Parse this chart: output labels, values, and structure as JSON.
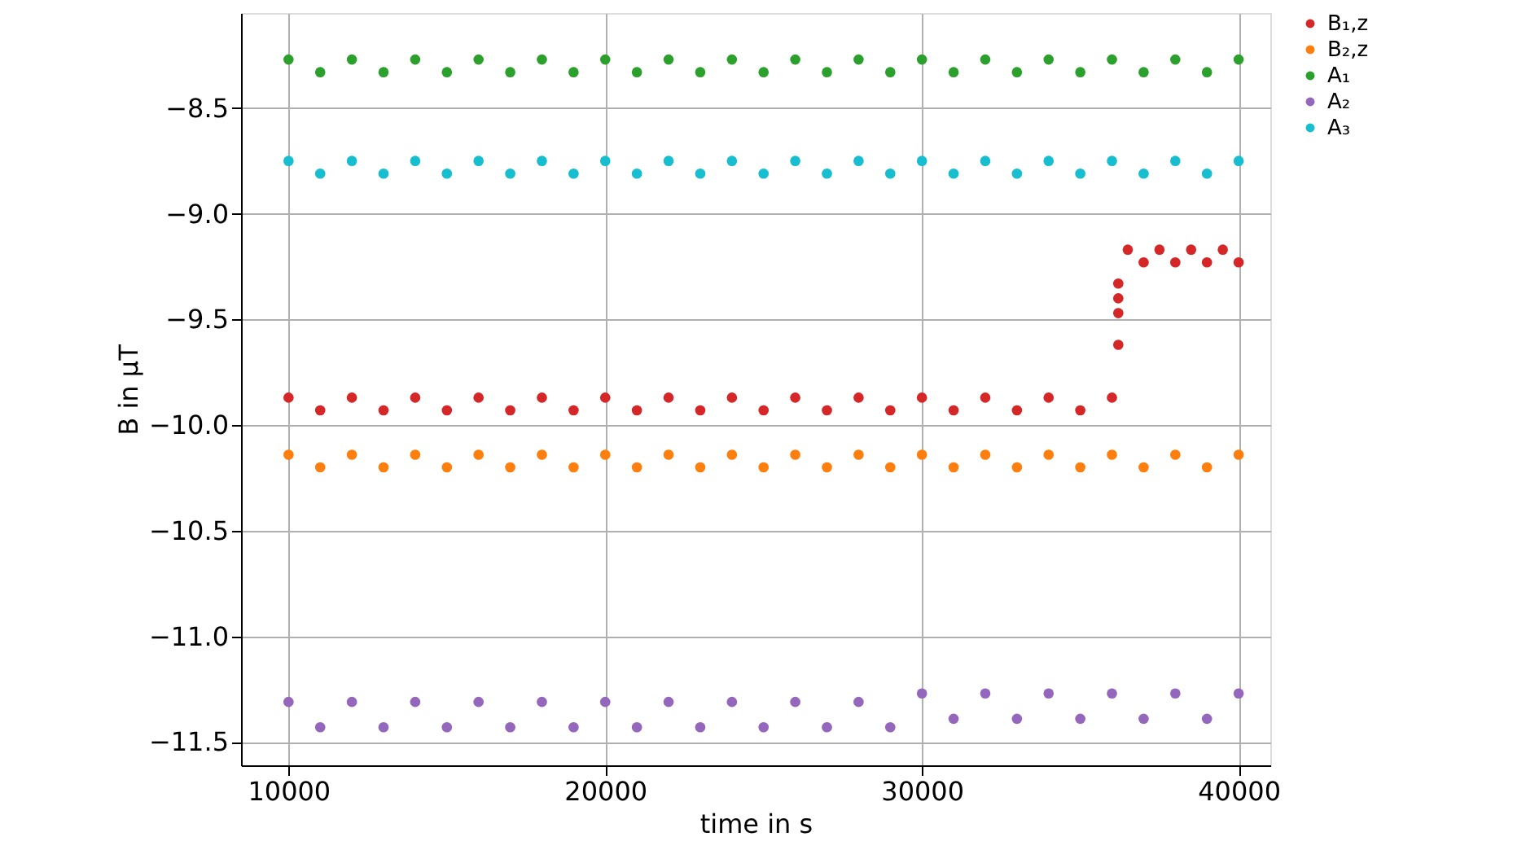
{
  "chart_data": {
    "type": "scatter",
    "xlabel": "time in s",
    "ylabel": "B in μT",
    "x": [
      10000,
      11000,
      12000,
      13000,
      14000,
      15000,
      16000,
      17000,
      18000,
      19000,
      20000,
      21000,
      22000,
      23000,
      24000,
      25000,
      26000,
      27000,
      28000,
      29000,
      30000,
      31000,
      32000,
      33000,
      34000,
      35000,
      36000,
      37000,
      38000,
      39000,
      40000
    ],
    "series": [
      {
        "name": "B₁,z",
        "color": "#d62728",
        "x": [
          10000,
          11000,
          12000,
          13000,
          14000,
          15000,
          16000,
          17000,
          18000,
          19000,
          20000,
          21000,
          22000,
          23000,
          24000,
          25000,
          26000,
          27000,
          28000,
          29000,
          30000,
          31000,
          32000,
          33000,
          34000,
          35000,
          36000,
          36200,
          36200,
          36200,
          36200,
          36500,
          37000,
          37500,
          38000,
          38500,
          39000,
          39500,
          40000
        ],
        "values": [
          -9.87,
          -9.93,
          -9.87,
          -9.93,
          -9.87,
          -9.93,
          -9.87,
          -9.93,
          -9.87,
          -9.93,
          -9.87,
          -9.93,
          -9.87,
          -9.93,
          -9.87,
          -9.93,
          -9.87,
          -9.93,
          -9.87,
          -9.93,
          -9.87,
          -9.93,
          -9.87,
          -9.93,
          -9.87,
          -9.93,
          -9.87,
          -9.62,
          -9.47,
          -9.4,
          -9.33,
          -9.17,
          -9.23,
          -9.17,
          -9.23,
          -9.17,
          -9.23,
          -9.17,
          -9.23
        ]
      },
      {
        "name": "B₂,z",
        "color": "#ff7f0e",
        "values": [
          -10.14,
          -10.2,
          -10.14,
          -10.2,
          -10.14,
          -10.2,
          -10.14,
          -10.2,
          -10.14,
          -10.2,
          -10.14,
          -10.2,
          -10.14,
          -10.2,
          -10.14,
          -10.2,
          -10.14,
          -10.2,
          -10.14,
          -10.2,
          -10.14,
          -10.2,
          -10.14,
          -10.2,
          -10.14,
          -10.2,
          -10.14,
          -10.2,
          -10.14,
          -10.2,
          -10.14
        ]
      },
      {
        "name": "A₁",
        "color": "#2ca02c",
        "values": [
          -8.27,
          -8.33,
          -8.27,
          -8.33,
          -8.27,
          -8.33,
          -8.27,
          -8.33,
          -8.27,
          -8.33,
          -8.27,
          -8.33,
          -8.27,
          -8.33,
          -8.27,
          -8.33,
          -8.27,
          -8.33,
          -8.27,
          -8.33,
          -8.27,
          -8.33,
          -8.27,
          -8.33,
          -8.27,
          -8.33,
          -8.27,
          -8.33,
          -8.27,
          -8.33,
          -8.27
        ]
      },
      {
        "name": "A₂",
        "color": "#9467bd",
        "values": [
          -11.31,
          -11.43,
          -11.31,
          -11.43,
          -11.31,
          -11.43,
          -11.31,
          -11.43,
          -11.31,
          -11.43,
          -11.31,
          -11.43,
          -11.31,
          -11.43,
          -11.31,
          -11.43,
          -11.31,
          -11.43,
          -11.31,
          -11.43,
          -11.27,
          -11.39,
          -11.27,
          -11.39,
          -11.27,
          -11.39,
          -11.27,
          -11.39,
          -11.27,
          -11.39,
          -11.27
        ]
      },
      {
        "name": "A₃",
        "color": "#17becf",
        "values": [
          -8.75,
          -8.81,
          -8.75,
          -8.81,
          -8.75,
          -8.81,
          -8.75,
          -8.81,
          -8.75,
          -8.81,
          -8.75,
          -8.81,
          -8.75,
          -8.81,
          -8.75,
          -8.81,
          -8.75,
          -8.81,
          -8.75,
          -8.81,
          -8.75,
          -8.81,
          -8.75,
          -8.81,
          -8.75,
          -8.81,
          -8.75,
          -8.81,
          -8.75,
          -8.81,
          -8.75
        ]
      }
    ],
    "xlim": [
      8500,
      41000
    ],
    "xticks": [
      10000,
      20000,
      30000,
      40000
    ],
    "ylim": [
      -11.61,
      -8.05
    ],
    "yticks": [
      {
        "value": -11.5,
        "label": "−11.5"
      },
      {
        "value": -11.0,
        "label": "−11.0"
      },
      {
        "value": -10.5,
        "label": "−10.5"
      },
      {
        "value": -10.0,
        "label": "−10.0"
      },
      {
        "value": -9.5,
        "label": "−9.5"
      },
      {
        "value": -9.0,
        "label": "−9.0"
      },
      {
        "value": -8.5,
        "label": "−8.5"
      }
    ],
    "grid": true,
    "legend": "top right",
    "marker": "circle"
  }
}
